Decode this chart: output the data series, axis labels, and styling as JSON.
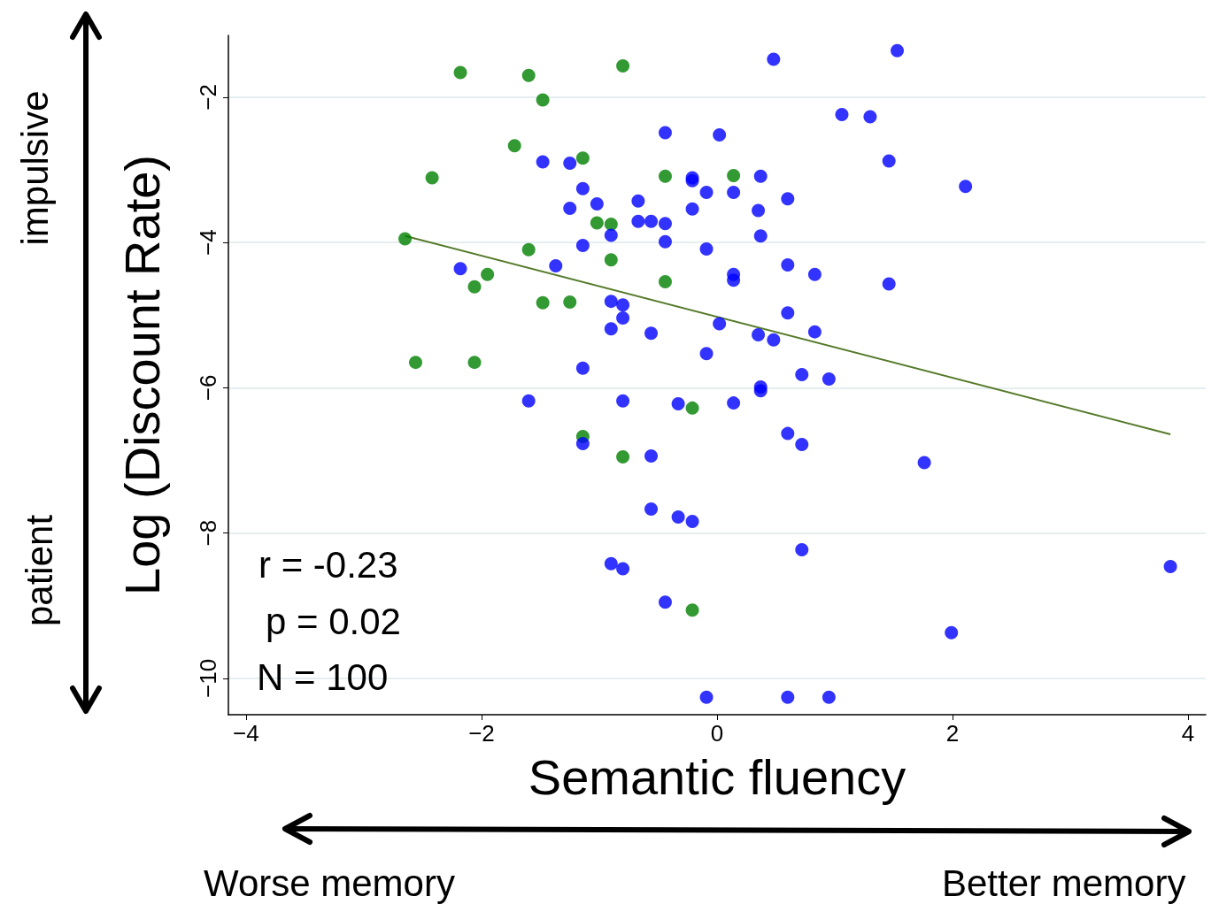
{
  "chart_data": {
    "type": "scatter",
    "xlabel": "Semantic fluency",
    "ylabel": "Log (Discount Rate)",
    "xlim": [
      -4.15,
      4.15
    ],
    "ylim": [
      -10.5,
      -1.15
    ],
    "xticks": [
      {
        "value": -4,
        "label": "−4"
      },
      {
        "value": -2,
        "label": "−2"
      },
      0,
      2,
      4
    ],
    "yticks": [
      {
        "value": -10,
        "label": "−10"
      },
      {
        "value": -8,
        "label": "−8"
      },
      {
        "value": -6,
        "label": "−6"
      },
      {
        "value": -4,
        "label": "−4"
      },
      {
        "value": -2,
        "label": "−2"
      }
    ],
    "grid": "y",
    "marker": "circle",
    "annotations": [
      "r = -0.23",
      "p = 0.02",
      "N = 100",
      "impulsive",
      "patient",
      "Worse memory",
      "Better memory"
    ],
    "series": [
      {
        "color": "#008000",
        "x": [
          -2.18,
          -1.6,
          -0.8,
          -1.48,
          -1.72,
          -2.42,
          -1.14,
          -0.44,
          0.14,
          -1.02,
          -0.9,
          -2.65,
          -1.6,
          -0.9,
          -1.95,
          -2.06,
          -0.44,
          -1.48,
          -1.25,
          -2.56,
          -2.06,
          -0.21,
          -1.14,
          -0.8,
          -0.21
        ],
        "values": [
          -1.66,
          -1.7,
          -1.57,
          -2.04,
          -2.67,
          -3.11,
          -2.84,
          -3.09,
          -3.08,
          -3.73,
          -3.75,
          -3.95,
          -4.1,
          -4.24,
          -4.44,
          -4.61,
          -4.54,
          -4.83,
          -4.82,
          -5.65,
          -5.65,
          -6.28,
          -6.67,
          -6.95,
          -9.06
        ]
      },
      {
        "color": "#0000ff",
        "x": [
          1.53,
          0.48,
          1.06,
          1.3,
          -0.44,
          0.02,
          1.46,
          -1.48,
          -1.25,
          -0.21,
          -0.21,
          0.37,
          2.11,
          -1.14,
          -0.09,
          0.14,
          -1.02,
          -0.67,
          0.6,
          -1.25,
          -0.21,
          0.35,
          -0.67,
          -0.56,
          -0.44,
          -0.9,
          0.37,
          -0.44,
          -1.14,
          -0.09,
          0.6,
          -1.37,
          -2.18,
          0.83,
          0.14,
          0.14,
          1.46,
          -0.9,
          -0.8,
          -0.8,
          0.6,
          0.02,
          -0.9,
          -0.56,
          0.83,
          0.35,
          0.48,
          -0.09,
          -1.14,
          0.72,
          0.95,
          0.37,
          0.37,
          -1.6,
          -0.8,
          -0.33,
          0.14,
          0.6,
          0.72,
          -1.14,
          -0.56,
          1.76,
          -0.56,
          -0.33,
          -0.21,
          0.72,
          -0.9,
          -0.8,
          3.85,
          -0.44,
          1.99,
          -0.09,
          0.6,
          0.95
        ],
        "values": [
          -1.36,
          -1.48,
          -2.24,
          -2.27,
          -2.49,
          -2.52,
          -2.88,
          -2.89,
          -2.91,
          -3.11,
          -3.15,
          -3.09,
          -3.23,
          -3.26,
          -3.31,
          -3.31,
          -3.47,
          -3.43,
          -3.4,
          -3.53,
          -3.54,
          -3.56,
          -3.71,
          -3.71,
          -3.74,
          -3.9,
          -3.91,
          -3.99,
          -4.04,
          -4.09,
          -4.31,
          -4.32,
          -4.36,
          -4.44,
          -4.44,
          -4.52,
          -4.57,
          -4.81,
          -4.86,
          -5.04,
          -4.97,
          -5.12,
          -5.19,
          -5.25,
          -5.23,
          -5.27,
          -5.34,
          -5.53,
          -5.73,
          -5.82,
          -5.88,
          -5.99,
          -6.04,
          -6.18,
          -6.18,
          -6.22,
          -6.21,
          -6.63,
          -6.78,
          -6.77,
          -6.94,
          -7.03,
          -7.67,
          -7.78,
          -7.84,
          -8.23,
          -8.42,
          -8.49,
          -8.46,
          -8.95,
          -9.37,
          -10.26,
          -10.26,
          -10.26
        ]
      },
      {
        "type": "line",
        "marker": "none",
        "color": "#557a2a",
        "x": [
          -2.65,
          3.85
        ],
        "values": [
          -3.91,
          -6.64
        ]
      }
    ]
  }
}
